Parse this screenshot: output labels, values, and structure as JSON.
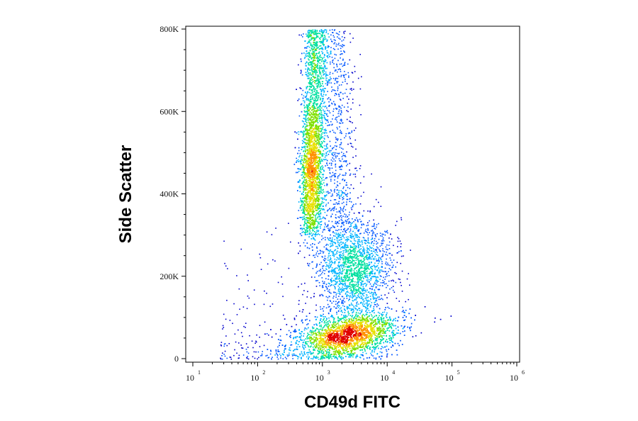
{
  "chart_data": {
    "type": "scatter",
    "subtype": "flow-cytometry density dot plot",
    "xlabel": "CD49d FITC",
    "ylabel": "Side Scatter",
    "x_scale": "log",
    "xlim": [
      10,
      1000000
    ],
    "ylim": [
      0,
      810000
    ],
    "x_ticks": [
      {
        "base": "10",
        "exp": "1",
        "value": 10
      },
      {
        "base": "10",
        "exp": "2",
        "value": 100
      },
      {
        "base": "10",
        "exp": "3",
        "value": 1000
      },
      {
        "base": "10",
        "exp": "4",
        "value": 10000
      },
      {
        "base": "10",
        "exp": "5",
        "value": 100000
      },
      {
        "base": "10",
        "exp": "6",
        "value": 1000000
      }
    ],
    "y_ticks": [
      {
        "label": "0",
        "value": 0
      },
      {
        "label": "200K",
        "value": 200000
      },
      {
        "label": "400K",
        "value": 400000
      },
      {
        "label": "600K",
        "value": 600000
      },
      {
        "label": "800K",
        "value": 800000
      }
    ],
    "grid": false,
    "colormap": [
      "#0000cc",
      "#0055ff",
      "#00b4ff",
      "#00e0a0",
      "#7fe000",
      "#e8e000",
      "#ff9000",
      "#e00000"
    ],
    "populations": [
      {
        "x_center": 700,
        "y_range": [
          300000,
          800000
        ],
        "peak_y": 450000,
        "x_spread_log": 0.09
      },
      {
        "x_center": 3000,
        "y_center": 60000,
        "x_spread_log": 0.35,
        "y_spread": 25000
      },
      {
        "x_center": 3200,
        "y_center": 220000,
        "x_spread_log": 0.28,
        "y_spread": 60000
      }
    ]
  }
}
